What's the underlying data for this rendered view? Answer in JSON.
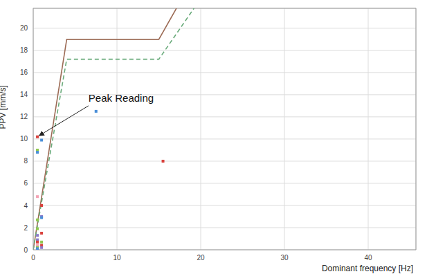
{
  "chart_data": {
    "type": "scatter",
    "x_label": "Dominant frequency [Hz]",
    "y_label": "PPV [mm/s]",
    "xlim": [
      0,
      45.7
    ],
    "ylim": [
      0,
      21.8
    ],
    "xticks": [
      0,
      10,
      20,
      30,
      40
    ],
    "yticks": [
      0,
      2,
      4,
      6,
      8,
      10,
      12,
      14,
      16,
      18,
      20
    ],
    "grid": true,
    "series": [
      {
        "type": "scatter",
        "marker": "square",
        "x": [
          0.5,
          1,
          7.5,
          15.5,
          0.5,
          0.5,
          0.5,
          1,
          1,
          1,
          1,
          0.5,
          0.5,
          0.5,
          0.5,
          0.5,
          0.5,
          0.5,
          0.5,
          1,
          1,
          1
        ],
        "values": [
          10.2,
          9.9,
          12.5,
          8.0,
          9.0,
          8.8,
          4.8,
          4.0,
          3.0,
          2.9,
          1.5,
          2.7,
          1.9,
          1.3,
          0.9,
          0.7,
          0.4,
          0.2,
          0.1,
          0.7,
          0.4,
          0.2
        ],
        "colors": [
          "#d9413c",
          "#4a8fd8",
          "#4a8fd8",
          "#d9413c",
          "#8fc94f",
          "#4a8fd8",
          "#f4a3b5",
          "#d9413c",
          "#8c7ac9",
          "#4a8fd8",
          "#d9413c",
          "#8fc94f",
          "#8fc94f",
          "#8c7ac9",
          "#8c7ac9",
          "#d9413c",
          "#f4a3b5",
          "#8fc94f",
          "#4a8fd8",
          "#8fc94f",
          "#d9413c",
          "#8c7ac9"
        ]
      },
      {
        "type": "line",
        "line_style": "solid",
        "color": "#9c6b55",
        "x": [
          0,
          4,
          15,
          17.1
        ],
        "values": [
          0,
          19,
          19,
          21.8
        ]
      },
      {
        "type": "line",
        "line_style": "dashed",
        "color": "#6aab7b",
        "x": [
          0,
          4,
          15,
          19.2
        ],
        "values": [
          0,
          17.2,
          17.2,
          21.8
        ]
      }
    ],
    "annotations": [
      {
        "text": "Peak Reading",
        "xy": [
          0.7,
          10.3
        ],
        "xytext": [
          6.6,
          13.0
        ]
      }
    ]
  }
}
